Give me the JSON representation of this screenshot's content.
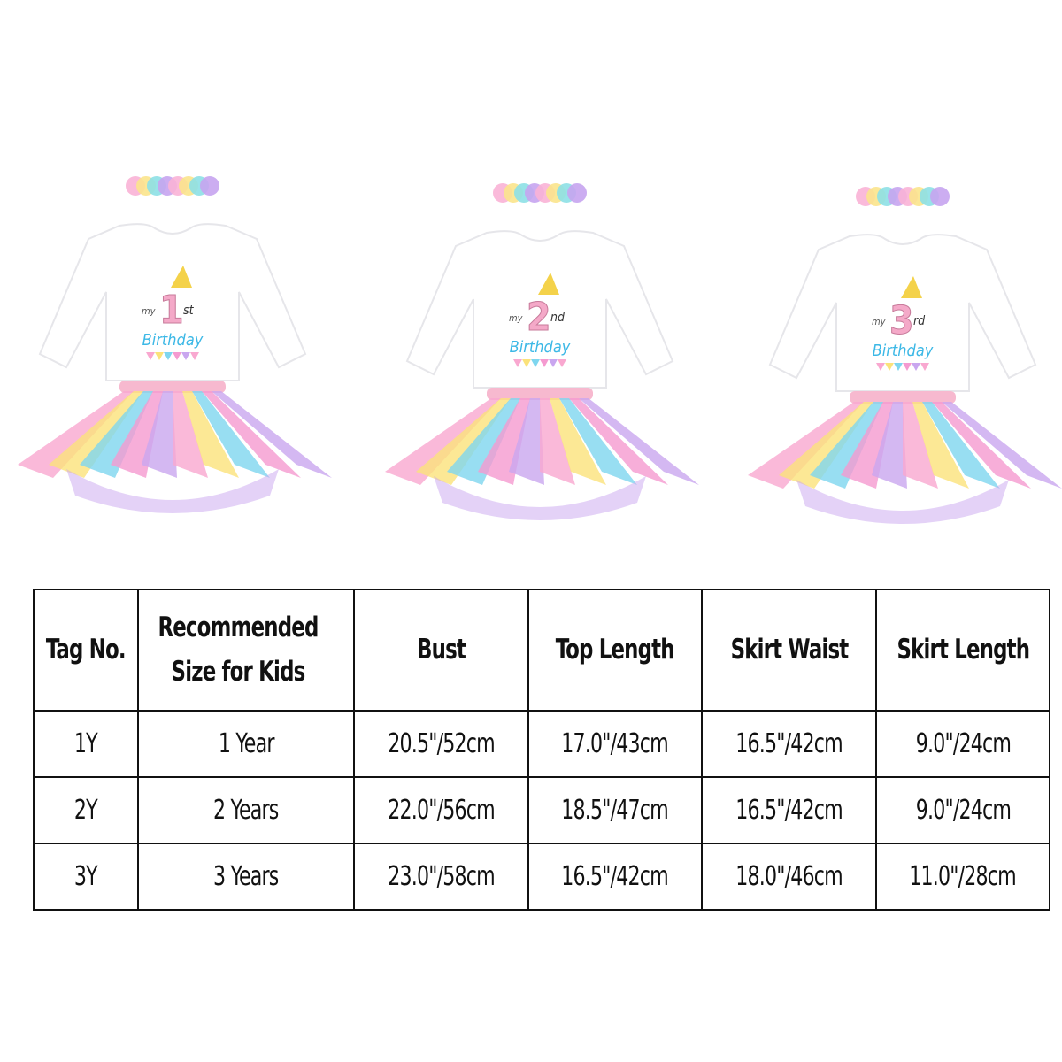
{
  "outfits": [
    {
      "my": "my",
      "number": "1",
      "suffix": "st",
      "word": "Birthday"
    },
    {
      "my": "my",
      "number": "2",
      "suffix": "nd",
      "word": "Birthday"
    },
    {
      "my": "my",
      "number": "3",
      "suffix": "rd",
      "word": "Birthday"
    }
  ],
  "colors": {
    "tutu": [
      "#f9a8d0",
      "#fbe27a",
      "#7ed6ef",
      "#f59ad0",
      "#c9a6ef"
    ],
    "headband": [
      "#f9b3d6",
      "#fbe48c",
      "#8de0e6",
      "#c7a4ef"
    ],
    "number": "#f4a9c8",
    "text": "#3cb8e6"
  },
  "size_chart": {
    "headers": [
      "Tag No.",
      "Recommended Size for Kids",
      "Bust",
      "Top Length",
      "Skirt Waist",
      "Skirt Length"
    ],
    "rows": [
      [
        "1Y",
        "1 Year",
        "20.5\"/52cm",
        "17.0\"/43cm",
        "16.5\"/42cm",
        "9.0\"/24cm"
      ],
      [
        "2Y",
        "2 Years",
        "22.0\"/56cm",
        "18.5\"/47cm",
        "16.5\"/42cm",
        "9.0\"/24cm"
      ],
      [
        "3Y",
        "3 Years",
        "23.0\"/58cm",
        "16.5\"/42cm",
        "18.0\"/46cm",
        "11.0\"/28cm"
      ]
    ]
  }
}
